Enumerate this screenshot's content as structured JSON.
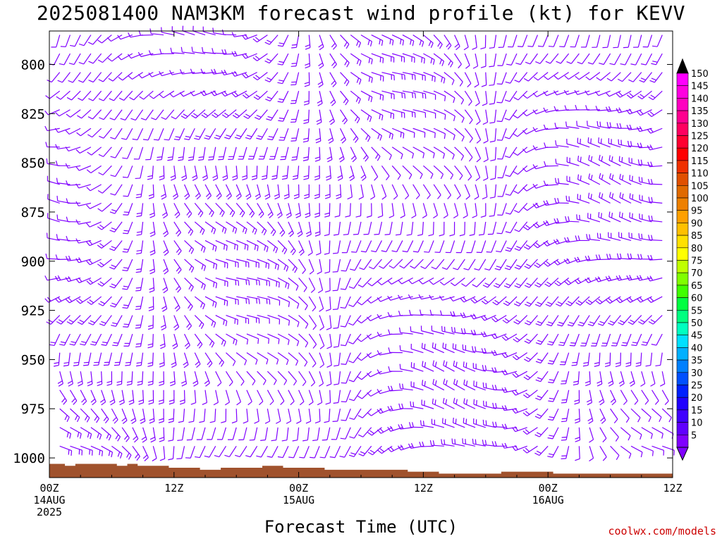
{
  "page": {
    "title": "2025081400 NAM3KM forecast wind profile (kt) for KEVV",
    "credit": "coolwx.com/models"
  },
  "chart_data": {
    "type": "wind-barb time-height profile",
    "title": "2025081400 NAM3KM forecast wind profile (kt) for KEVV",
    "xlabel": "Forecast Time (UTC)",
    "ylabel": "",
    "x_range_hours": [
      0,
      60
    ],
    "y_range_hpa": [
      1010,
      783
    ],
    "y_ticks": [
      {
        "value": 800,
        "label": "800"
      },
      {
        "value": 825,
        "label": "825"
      },
      {
        "value": 850,
        "label": "850"
      },
      {
        "value": 875,
        "label": "875"
      },
      {
        "value": 900,
        "label": "900"
      },
      {
        "value": 925,
        "label": "925"
      },
      {
        "value": 950,
        "label": "950"
      },
      {
        "value": 975,
        "label": "975"
      },
      {
        "value": 1000,
        "label": "1000"
      }
    ],
    "x_ticks": [
      {
        "hour": 0,
        "lines": [
          "00Z",
          "14AUG",
          "2025"
        ]
      },
      {
        "hour": 12,
        "lines": [
          "12Z"
        ]
      },
      {
        "hour": 24,
        "lines": [
          "00Z",
          "15AUG"
        ]
      },
      {
        "hour": 36,
        "lines": [
          "12Z"
        ]
      },
      {
        "hour": 48,
        "lines": [
          "00Z",
          "16AUG"
        ]
      },
      {
        "hour": 60,
        "lines": [
          "12Z"
        ]
      }
    ],
    "barb_color": "#8000ff",
    "ground_color": "#a0522d",
    "surface_pressure": [
      {
        "hour": 0,
        "hpa": 1003
      },
      {
        "hour": 1.5,
        "hpa": 1004
      },
      {
        "hour": 2.5,
        "hpa": 1003
      },
      {
        "hour": 6.5,
        "hpa": 1004
      },
      {
        "hour": 7.5,
        "hpa": 1003
      },
      {
        "hour": 8.5,
        "hpa": 1004
      },
      {
        "hour": 11.5,
        "hpa": 1005
      },
      {
        "hour": 14.5,
        "hpa": 1006
      },
      {
        "hour": 16.5,
        "hpa": 1005
      },
      {
        "hour": 20.5,
        "hpa": 1004
      },
      {
        "hour": 22.5,
        "hpa": 1005
      },
      {
        "hour": 26.5,
        "hpa": 1006
      },
      {
        "hour": 34.5,
        "hpa": 1007
      },
      {
        "hour": 37.5,
        "hpa": 1008
      },
      {
        "hour": 43.5,
        "hpa": 1007
      },
      {
        "hour": 48.5,
        "hpa": 1008
      },
      {
        "hour": 60,
        "hpa": 1008
      }
    ],
    "colorbar": {
      "labels": [
        "150",
        "145",
        "140",
        "135",
        "130",
        "125",
        "120",
        "115",
        "110",
        "105",
        "100",
        "95",
        "90",
        "85",
        "80",
        "75",
        "70",
        "65",
        "60",
        "55",
        "50",
        "45",
        "40",
        "35",
        "30",
        "25",
        "20",
        "15",
        "10",
        "5"
      ],
      "colors": [
        "#ff00ff",
        "#ff00e0",
        "#ff00c0",
        "#ff0090",
        "#ff0060",
        "#ff0030",
        "#ff0000",
        "#f03000",
        "#e05000",
        "#e06a00",
        "#ee8000",
        "#ffa000",
        "#ffc000",
        "#ffe000",
        "#ffff00",
        "#c0ff00",
        "#80ff00",
        "#40ff00",
        "#00ff40",
        "#00ff80",
        "#00ffc0",
        "#00e0ff",
        "#00b0ff",
        "#0080ff",
        "#0050ff",
        "#0020ff",
        "#2000ff",
        "#4000ff",
        "#6000ff",
        "#8000ff"
      ],
      "top_arrow_color": "#000000",
      "bottom_arrow_color": "#8000ff"
    }
  }
}
